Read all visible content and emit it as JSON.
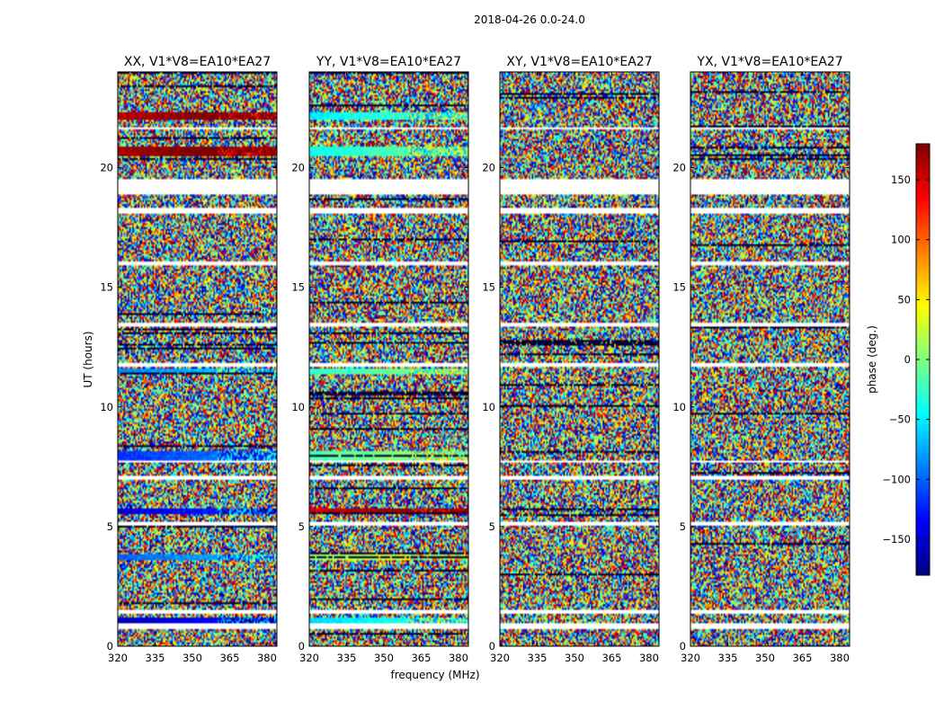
{
  "chart_data": {
    "type": "heatmap",
    "title": "2018-04-26 0.0-24.0",
    "xlabel": "frequency (MHz)",
    "ylabel": "UT (hours)",
    "xlim": [
      320,
      384
    ],
    "ylim": [
      0,
      24
    ],
    "xticks": [
      "320",
      "335",
      "350",
      "365",
      "380"
    ],
    "yticks": [
      "0",
      "5",
      "10",
      "15",
      "20"
    ],
    "panels": [
      {
        "title": "XX, V1*V8=EA10*EA27",
        "pol": "XX"
      },
      {
        "title": "YY, V1*V8=EA10*EA27",
        "pol": "YY"
      },
      {
        "title": "XY, V1*V8=EA10*EA27",
        "pol": "XY"
      },
      {
        "title": "YX, V1*V8=EA10*EA27",
        "pol": "YX"
      }
    ],
    "blank_gaps_ut": [
      [
        0.75,
        0.95
      ],
      [
        1.35,
        1.5
      ],
      [
        5.05,
        5.2
      ],
      [
        6.95,
        7.1
      ],
      [
        7.65,
        7.75
      ],
      [
        11.7,
        11.8
      ],
      [
        13.35,
        13.5
      ],
      [
        15.9,
        16.1
      ],
      [
        18.05,
        18.3
      ],
      [
        18.9,
        19.5
      ],
      [
        21.6,
        21.7
      ]
    ],
    "coherent_bands_ut": [
      {
        "ut": 1.1,
        "half_width": 0.12,
        "xx_phase": -160,
        "yy_phase": -60
      },
      {
        "ut": 3.7,
        "half_width": 0.12,
        "xx_phase": -100,
        "yy_phase": 10
      },
      {
        "ut": 5.65,
        "half_width": 0.1,
        "xx_phase": -150,
        "yy_phase": 150
      },
      {
        "ut": 7.95,
        "half_width": 0.2,
        "xx_phase": -120,
        "yy_phase": -20
      },
      {
        "ut": 11.5,
        "half_width": 0.1,
        "xx_phase": -90,
        "yy_phase": -30
      },
      {
        "ut": 20.7,
        "half_width": 0.18,
        "xx_phase": 165,
        "yy_phase": -40
      },
      {
        "ut": 22.15,
        "half_width": 0.18,
        "xx_phase": 160,
        "yy_phase": -50
      }
    ],
    "colorbar": {
      "label": "phase (deg.)",
      "range": [
        -180,
        180
      ],
      "ticks": [
        "150",
        "100",
        "50",
        "0",
        "−50",
        "−100",
        "−150"
      ],
      "tick_values": [
        150,
        100,
        50,
        0,
        -50,
        -100,
        -150
      ],
      "colormap": "jet"
    }
  }
}
